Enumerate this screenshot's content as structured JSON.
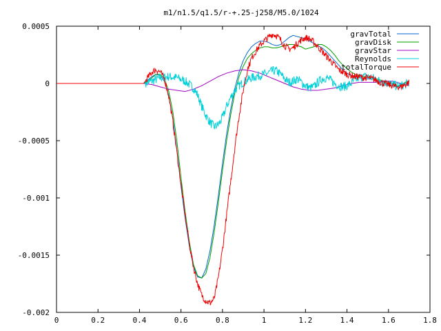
{
  "chart_data": {
    "type": "line",
    "title": "m1/n1.5/q1.5/r-+.25-j258/M5.0/1024",
    "xlabel": "",
    "ylabel": "",
    "xlim": [
      0,
      1.8
    ],
    "ylim": [
      -0.002,
      0.0005
    ],
    "x_ticks": [
      0,
      0.2,
      0.4,
      0.6,
      0.8,
      1,
      1.2,
      1.4,
      1.6,
      1.8
    ],
    "x_tick_labels": [
      "0",
      "0.2",
      "0.4",
      "0.6",
      "0.8",
      "1",
      "1.2",
      "1.4",
      "1.6",
      "1.8"
    ],
    "y_ticks": [
      0.0005,
      0,
      -0.0005,
      -0.001,
      -0.0015,
      -0.002
    ],
    "y_tick_labels": [
      "0.0005",
      "0",
      "-0.0005",
      "-0.001",
      "-0.0015",
      "-0.002"
    ],
    "grid": false,
    "legend_position": "top-right",
    "series": [
      {
        "name": "gravTotal",
        "color": "#0066cc",
        "x": [
          0,
          0.42,
          0.44,
          0.46,
          0.48,
          0.5,
          0.52,
          0.54,
          0.56,
          0.58,
          0.6,
          0.62,
          0.64,
          0.66,
          0.68,
          0.7,
          0.72,
          0.74,
          0.76,
          0.78,
          0.8,
          0.82,
          0.84,
          0.86,
          0.88,
          0.9,
          0.92,
          0.94,
          0.96,
          0.98,
          1.0,
          1.02,
          1.04,
          1.06,
          1.08,
          1.1,
          1.12,
          1.14,
          1.16,
          1.18,
          1.2,
          1.22,
          1.24,
          1.26,
          1.28,
          1.3,
          1.32,
          1.34,
          1.36,
          1.38,
          1.4,
          1.42,
          1.44,
          1.46,
          1.48,
          1.5,
          1.52,
          1.54,
          1.56,
          1.58,
          1.6,
          1.62,
          1.64,
          1.66,
          1.68,
          1.7
        ],
        "y": [
          0,
          0,
          3e-05,
          6e-05,
          8e-05,
          7e-05,
          2e-05,
          -0.0001,
          -0.0003,
          -0.00058,
          -0.0009,
          -0.00118,
          -0.00142,
          -0.0016,
          -0.00169,
          -0.0017,
          -0.00162,
          -0.00146,
          -0.00124,
          -0.00098,
          -0.0007,
          -0.00044,
          -0.00022,
          -4e-05,
          0.0001,
          0.0002,
          0.00027,
          0.00032,
          0.00035,
          0.00037,
          0.00037,
          0.00036,
          0.00034,
          0.00033,
          0.00034,
          0.00037,
          0.0004,
          0.00042,
          0.00041,
          0.0004,
          0.00039,
          0.00037,
          0.00035,
          0.00033,
          0.00031,
          0.00028,
          0.00024,
          0.0002,
          0.00016,
          0.00012,
          9e-05,
          7e-05,
          6e-05,
          5e-05,
          4e-05,
          4e-05,
          4e-05,
          3e-05,
          2e-05,
          1e-05,
          -1e-05,
          -2e-05,
          -3e-05,
          -2e-05,
          1e-05,
          2e-05
        ]
      },
      {
        "name": "gravDisk",
        "color": "#00a000",
        "x": [
          0,
          0.42,
          0.44,
          0.46,
          0.48,
          0.5,
          0.52,
          0.54,
          0.56,
          0.58,
          0.6,
          0.62,
          0.64,
          0.66,
          0.68,
          0.7,
          0.72,
          0.74,
          0.76,
          0.78,
          0.8,
          0.82,
          0.84,
          0.86,
          0.88,
          0.9,
          0.92,
          0.94,
          0.96,
          0.98,
          1.0,
          1.02,
          1.04,
          1.06,
          1.08,
          1.1,
          1.12,
          1.14,
          1.16,
          1.18,
          1.2,
          1.22,
          1.24,
          1.26,
          1.28,
          1.3,
          1.32,
          1.34,
          1.36,
          1.38,
          1.4,
          1.42,
          1.44,
          1.46,
          1.48,
          1.5,
          1.52,
          1.54,
          1.56,
          1.58,
          1.6,
          1.62,
          1.64,
          1.66,
          1.68,
          1.7
        ],
        "y": [
          0,
          0,
          2e-05,
          5e-05,
          8e-05,
          8e-05,
          4e-05,
          -6e-05,
          -0.00024,
          -0.0005,
          -0.00082,
          -0.00112,
          -0.00138,
          -0.00158,
          -0.00168,
          -0.0017,
          -0.00166,
          -0.00152,
          -0.0013,
          -0.00104,
          -0.00076,
          -0.0005,
          -0.00027,
          -8e-05,
          6e-05,
          0.00015,
          0.00022,
          0.00026,
          0.00029,
          0.00031,
          0.00032,
          0.00032,
          0.00031,
          0.00031,
          0.00032,
          0.00033,
          0.00034,
          0.00034,
          0.00033,
          0.00032,
          0.0003,
          0.00031,
          0.00032,
          0.00034,
          0.00034,
          0.00032,
          0.00029,
          0.00025,
          0.0002,
          0.00016,
          0.00013,
          0.0001,
          8e-05,
          7e-05,
          6e-05,
          5e-05,
          5e-05,
          4e-05,
          3e-05,
          2e-05,
          1e-05,
          0,
          -2e-05,
          -2e-05,
          1e-05,
          2e-05
        ]
      },
      {
        "name": "gravStar",
        "color": "#a000c0",
        "x": [
          0,
          0.42,
          0.46,
          0.5,
          0.54,
          0.58,
          0.62,
          0.66,
          0.7,
          0.74,
          0.78,
          0.82,
          0.86,
          0.9,
          0.94,
          0.98,
          1.02,
          1.06,
          1.1,
          1.14,
          1.18,
          1.22,
          1.26,
          1.3,
          1.34,
          1.38,
          1.42,
          1.46,
          1.5,
          1.54,
          1.58,
          1.62,
          1.66,
          1.7
        ],
        "y": [
          0,
          0,
          -1e-05,
          -3e-05,
          -5e-05,
          -6e-05,
          -7e-05,
          -5e-05,
          -2e-05,
          2e-05,
          6e-05,
          9e-05,
          0.00011,
          0.00012,
          0.00011,
          9e-05,
          6e-05,
          3e-05,
          0,
          -3e-05,
          -5e-05,
          -6e-05,
          -6e-05,
          -5e-05,
          -4e-05,
          -2e-05,
          0,
          1e-05,
          1e-05,
          1e-05,
          2e-05,
          2e-05,
          0,
          -2e-05
        ]
      },
      {
        "name": "Reynolds",
        "color": "#00d0d8",
        "x": [
          0,
          0.42,
          0.46,
          0.5,
          0.54,
          0.58,
          0.62,
          0.66,
          0.68,
          0.7,
          0.72,
          0.74,
          0.76,
          0.78,
          0.8,
          0.82,
          0.84,
          0.86,
          0.88,
          0.9,
          0.92,
          0.94,
          0.96,
          0.98,
          1.0,
          1.02,
          1.04,
          1.06,
          1.08,
          1.1,
          1.12,
          1.14,
          1.16,
          1.18,
          1.2,
          1.22,
          1.24,
          1.26,
          1.28,
          1.3,
          1.32,
          1.34,
          1.36,
          1.38,
          1.4,
          1.42,
          1.44,
          1.46,
          1.48,
          1.5,
          1.52,
          1.54,
          1.56,
          1.58,
          1.6,
          1.62,
          1.64,
          1.66,
          1.68,
          1.7
        ],
        "y": [
          0,
          0,
          2e-05,
          5e-05,
          6e-05,
          5e-05,
          2e-05,
          -4e-05,
          -0.0001,
          -0.0002,
          -0.00028,
          -0.00034,
          -0.00038,
          -0.00036,
          -0.0003,
          -0.0002,
          -0.00012,
          -6e-05,
          -2e-05,
          1e-05,
          3e-05,
          5e-05,
          6e-05,
          7e-05,
          8e-05,
          9e-05,
          0.00011,
          0.00011,
          8e-05,
          4e-05,
          1e-05,
          2e-05,
          4e-05,
          1e-05,
          -2e-05,
          -4e-05,
          -3e-05,
          1e-05,
          4e-05,
          5e-05,
          3e-05,
          0,
          -2e-05,
          -3e-05,
          -2e-05,
          0,
          3e-05,
          5e-05,
          6e-05,
          6e-05,
          5e-05,
          4e-05,
          2e-05,
          1e-05,
          0,
          -1e-05,
          -2e-05,
          -2e-05,
          -1e-05,
          0
        ],
        "noise_amplitude": 4e-05
      },
      {
        "name": "totalTorque",
        "color": "#ee0000",
        "x": [
          0,
          0.42,
          0.44,
          0.46,
          0.48,
          0.5,
          0.52,
          0.54,
          0.56,
          0.58,
          0.6,
          0.62,
          0.64,
          0.66,
          0.68,
          0.7,
          0.72,
          0.74,
          0.76,
          0.78,
          0.8,
          0.82,
          0.84,
          0.86,
          0.88,
          0.9,
          0.92,
          0.94,
          0.96,
          0.98,
          1.0,
          1.02,
          1.04,
          1.06,
          1.08,
          1.1,
          1.12,
          1.14,
          1.16,
          1.18,
          1.2,
          1.22,
          1.24,
          1.26,
          1.28,
          1.3,
          1.32,
          1.34,
          1.36,
          1.38,
          1.4,
          1.42,
          1.44,
          1.46,
          1.48,
          1.5,
          1.52,
          1.54,
          1.56,
          1.58,
          1.6,
          1.62,
          1.64,
          1.66,
          1.68,
          1.7
        ],
        "y": [
          0,
          0,
          5e-05,
          0.0001,
          0.00012,
          0.0001,
          4e-05,
          -0.0001,
          -0.00032,
          -0.0006,
          -0.00088,
          -0.00115,
          -0.0014,
          -0.0016,
          -0.00175,
          -0.00185,
          -0.0019,
          -0.00192,
          -0.00188,
          -0.0017,
          -0.00145,
          -0.00115,
          -0.00085,
          -0.00055,
          -0.00028,
          -6e-05,
          0.00012,
          0.00022,
          0.00028,
          0.00033,
          0.00037,
          0.0004,
          0.00043,
          0.00042,
          0.00038,
          0.00033,
          0.0003,
          0.00031,
          0.00035,
          0.00038,
          0.0004,
          0.00039,
          0.00036,
          0.00032,
          0.00028,
          0.00024,
          0.0002,
          0.00016,
          0.00012,
          0.0001,
          8e-05,
          7e-05,
          6e-05,
          6e-05,
          5e-05,
          5e-05,
          4e-05,
          3e-05,
          1e-05,
          0,
          -1e-05,
          -2e-05,
          -3e-05,
          -3e-05,
          -1e-05,
          1e-05
        ],
        "noise_amplitude": 3e-05
      }
    ]
  }
}
